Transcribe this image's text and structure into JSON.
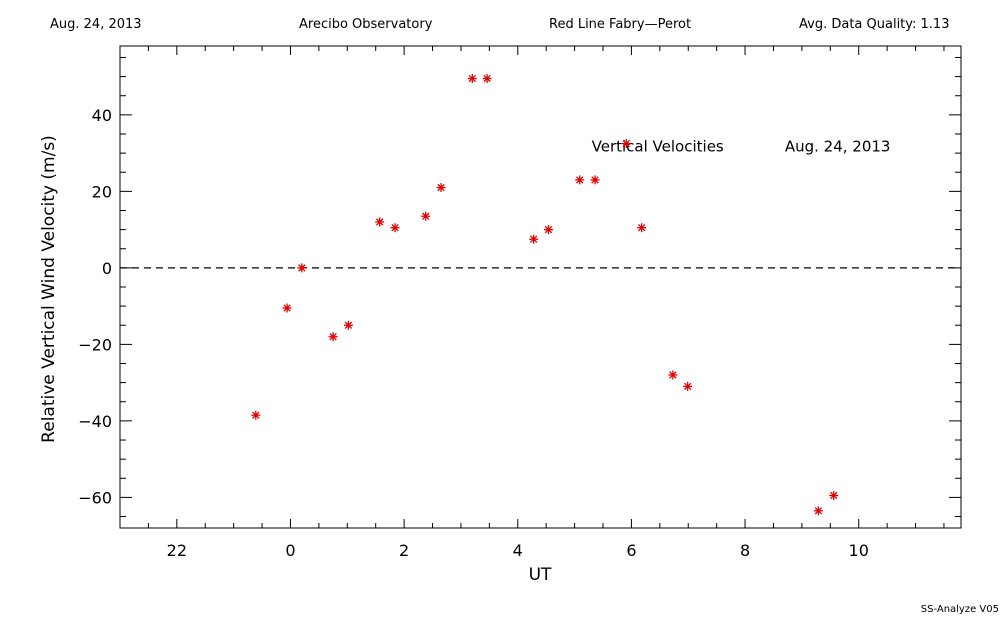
{
  "header": {
    "date": "Aug. 24, 2013",
    "observatory": "Arecibo Observatory",
    "instrument": "Red Line Fabry—Perot",
    "quality": "Avg. Data Quality: 1.13"
  },
  "footer": {
    "version": "SS-Analyze V05"
  },
  "colors": {
    "marker": "#e00000",
    "axis": "#000000"
  },
  "chart_data": {
    "type": "scatter",
    "title": "",
    "xlabel": "UT",
    "ylabel": "Relative Vertical Wind Velocity (m/s)",
    "xlim": [
      21,
      35.8
    ],
    "ylim": [
      -68,
      58
    ],
    "xticks": [
      22,
      24,
      26,
      28,
      30,
      32,
      34
    ],
    "xtick_labels": [
      "22",
      "0",
      "2",
      "4",
      "6",
      "8",
      "10"
    ],
    "yticks": [
      -60,
      -40,
      -20,
      0,
      20,
      40
    ],
    "ytick_labels": [
      "−60",
      "−40",
      "−20",
      "0",
      "20",
      "40"
    ],
    "zero_line": "dashed",
    "annotations": [
      {
        "text": "Vertical Velocities",
        "x": 29.3,
        "y": 32
      },
      {
        "text": "Aug. 24, 2013",
        "x": 32.7,
        "y": 32
      }
    ],
    "series": [
      {
        "marker": "asterisk",
        "x": [
          23.39,
          23.94,
          24.2,
          24.75,
          25.02,
          25.57,
          25.84,
          26.38,
          26.65,
          27.2,
          27.46,
          28.28,
          28.54,
          29.09,
          29.36,
          29.91,
          30.18,
          30.73,
          30.99,
          33.29,
          33.56
        ],
        "y": [
          -38.5,
          -10.5,
          0,
          -18,
          -15,
          12,
          10.5,
          13.5,
          21,
          49.5,
          49.5,
          7.5,
          10,
          23,
          23,
          32.5,
          10.5,
          -28,
          -31,
          -63.5,
          -59.5
        ]
      }
    ]
  }
}
